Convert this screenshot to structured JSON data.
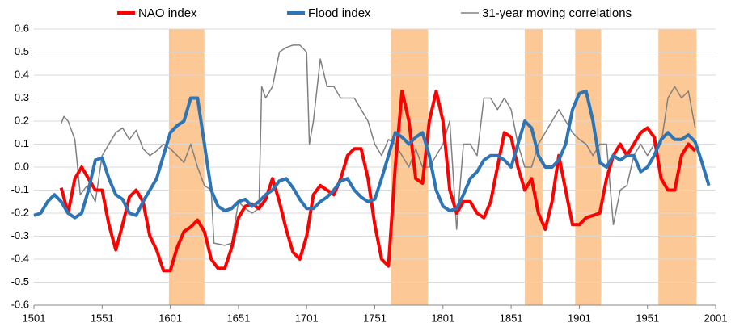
{
  "chart_data": {
    "type": "line",
    "xlim": [
      1501,
      2001
    ],
    "xticks": [
      1501,
      1551,
      1601,
      1651,
      1701,
      1751,
      1801,
      1851,
      1901,
      1951,
      2001
    ],
    "ylim": [
      -0.6,
      0.6
    ],
    "yticks": [
      -0.6,
      -0.5,
      -0.4,
      -0.3,
      -0.2,
      -0.1,
      {
        "value": 0,
        "label": "0.0"
      },
      0.1,
      0.2,
      0.3,
      0.4,
      0.5,
      0.6
    ],
    "grid": true,
    "legend": "top",
    "shaded_periods": [
      [
        1600,
        1626
      ],
      [
        1763,
        1790
      ],
      [
        1861,
        1874
      ],
      [
        1898,
        1917
      ],
      [
        1959,
        1987
      ]
    ],
    "shade_color": "#fcc996",
    "series": [
      {
        "name": "NAO index",
        "color": "#ff0000",
        "width": 4,
        "x": [
          1521,
          1526,
          1531,
          1536,
          1541,
          1546,
          1551,
          1556,
          1561,
          1566,
          1571,
          1576,
          1581,
          1586,
          1591,
          1596,
          1601,
          1606,
          1611,
          1616,
          1621,
          1626,
          1631,
          1636,
          1641,
          1646,
          1651,
          1656,
          1661,
          1666,
          1671,
          1676,
          1681,
          1686,
          1691,
          1696,
          1701,
          1706,
          1711,
          1716,
          1721,
          1726,
          1731,
          1736,
          1741,
          1746,
          1751,
          1756,
          1761,
          1766,
          1771,
          1776,
          1781,
          1786,
          1791,
          1796,
          1801,
          1806,
          1811,
          1816,
          1821,
          1826,
          1831,
          1836,
          1841,
          1846,
          1851,
          1856,
          1861,
          1866,
          1871,
          1876,
          1881,
          1886,
          1891,
          1896,
          1901,
          1906,
          1911,
          1916,
          1921,
          1926,
          1931,
          1936,
          1941,
          1946,
          1951,
          1956,
          1961,
          1966,
          1971,
          1976,
          1981,
          1986
        ],
        "values": [
          -0.09,
          -0.2,
          -0.05,
          0.0,
          -0.05,
          -0.1,
          -0.1,
          -0.25,
          -0.36,
          -0.25,
          -0.13,
          -0.1,
          -0.15,
          -0.3,
          -0.36,
          -0.45,
          -0.45,
          -0.35,
          -0.28,
          -0.26,
          -0.23,
          -0.28,
          -0.4,
          -0.44,
          -0.44,
          -0.35,
          -0.22,
          -0.17,
          -0.16,
          -0.18,
          -0.14,
          -0.05,
          -0.15,
          -0.27,
          -0.37,
          -0.4,
          -0.3,
          -0.12,
          -0.08,
          -0.1,
          -0.12,
          -0.05,
          0.05,
          0.08,
          0.08,
          -0.05,
          -0.25,
          -0.4,
          -0.43,
          0.0,
          0.33,
          0.2,
          -0.05,
          -0.07,
          0.2,
          0.33,
          0.2,
          -0.1,
          -0.2,
          -0.15,
          -0.15,
          -0.2,
          -0.22,
          -0.15,
          0.0,
          0.15,
          0.13,
          0.0,
          -0.1,
          -0.05,
          -0.2,
          -0.27,
          -0.15,
          0.05,
          -0.1,
          -0.25,
          -0.25,
          -0.22,
          -0.21,
          -0.2,
          -0.05,
          0.05,
          0.1,
          0.05,
          0.1,
          0.15,
          0.17,
          0.13,
          -0.05,
          -0.1,
          -0.1,
          0.05,
          0.1,
          0.07
        ]
      },
      {
        "name": "Flood index",
        "color": "#2e75b6",
        "width": 4,
        "x": [
          1501,
          1506,
          1511,
          1516,
          1521,
          1526,
          1531,
          1536,
          1541,
          1546,
          1551,
          1556,
          1561,
          1566,
          1571,
          1576,
          1581,
          1586,
          1591,
          1596,
          1601,
          1606,
          1611,
          1616,
          1621,
          1626,
          1631,
          1636,
          1641,
          1646,
          1651,
          1656,
          1661,
          1666,
          1671,
          1676,
          1681,
          1686,
          1691,
          1696,
          1701,
          1706,
          1711,
          1716,
          1721,
          1726,
          1731,
          1736,
          1741,
          1746,
          1751,
          1756,
          1761,
          1766,
          1771,
          1776,
          1781,
          1786,
          1791,
          1796,
          1801,
          1806,
          1811,
          1816,
          1821,
          1826,
          1831,
          1836,
          1841,
          1846,
          1851,
          1856,
          1861,
          1866,
          1871,
          1876,
          1881,
          1886,
          1891,
          1896,
          1901,
          1906,
          1911,
          1916,
          1921,
          1926,
          1931,
          1936,
          1941,
          1946,
          1951,
          1956,
          1961,
          1966,
          1971,
          1976,
          1981,
          1986,
          1991,
          1996
        ],
        "values": [
          -0.21,
          -0.2,
          -0.15,
          -0.12,
          -0.15,
          -0.2,
          -0.22,
          -0.2,
          -0.1,
          0.03,
          0.04,
          -0.05,
          -0.12,
          -0.14,
          -0.2,
          -0.21,
          -0.15,
          -0.1,
          -0.05,
          0.05,
          0.15,
          0.18,
          0.2,
          0.3,
          0.3,
          0.1,
          -0.1,
          -0.17,
          -0.19,
          -0.18,
          -0.15,
          -0.14,
          -0.17,
          -0.15,
          -0.12,
          -0.1,
          -0.06,
          -0.05,
          -0.09,
          -0.14,
          -0.18,
          -0.18,
          -0.15,
          -0.13,
          -0.1,
          -0.06,
          -0.05,
          -0.1,
          -0.13,
          -0.15,
          -0.14,
          -0.05,
          0.05,
          0.15,
          0.13,
          0.1,
          0.13,
          0.15,
          0.05,
          -0.1,
          -0.17,
          -0.19,
          -0.18,
          -0.12,
          -0.05,
          -0.02,
          0.03,
          0.05,
          0.05,
          0.03,
          0.0,
          0.1,
          0.2,
          0.17,
          0.05,
          0.0,
          0.0,
          0.03,
          0.1,
          0.25,
          0.32,
          0.33,
          0.2,
          0.02,
          0.0,
          0.05,
          0.03,
          0.05,
          0.05,
          -0.02,
          0.0,
          0.05,
          0.12,
          0.15,
          0.12,
          0.12,
          0.14,
          0.11,
          0.02,
          -0.08
        ]
      },
      {
        "name": "31-year moving correlations",
        "color": "#808080",
        "width": 1.5,
        "x": [
          1521,
          1523,
          1526,
          1531,
          1535,
          1540,
          1546,
          1551,
          1556,
          1561,
          1566,
          1571,
          1576,
          1581,
          1586,
          1591,
          1596,
          1601,
          1606,
          1611,
          1616,
          1621,
          1626,
          1631,
          1633,
          1641,
          1646,
          1651,
          1656,
          1661,
          1666,
          1668,
          1671,
          1676,
          1681,
          1686,
          1691,
          1696,
          1701,
          1703,
          1706,
          1711,
          1716,
          1721,
          1726,
          1731,
          1736,
          1741,
          1746,
          1751,
          1756,
          1761,
          1766,
          1771,
          1776,
          1781,
          1786,
          1791,
          1796,
          1801,
          1806,
          1811,
          1816,
          1821,
          1826,
          1831,
          1836,
          1841,
          1846,
          1851,
          1856,
          1861,
          1866,
          1871,
          1876,
          1881,
          1886,
          1891,
          1896,
          1901,
          1906,
          1911,
          1916,
          1921,
          1926,
          1931,
          1936,
          1941,
          1946,
          1951,
          1956,
          1961,
          1966,
          1971,
          1976,
          1981,
          1986
        ],
        "values": [
          0.19,
          0.22,
          0.2,
          0.12,
          -0.12,
          -0.08,
          -0.15,
          0.05,
          0.1,
          0.15,
          0.17,
          0.12,
          0.16,
          0.08,
          0.05,
          0.07,
          0.1,
          0.08,
          0.05,
          0.02,
          0.1,
          0.0,
          -0.08,
          -0.1,
          -0.33,
          -0.34,
          -0.33,
          -0.15,
          -0.18,
          -0.2,
          -0.18,
          0.35,
          0.3,
          0.35,
          0.5,
          0.52,
          0.53,
          0.53,
          0.5,
          0.1,
          0.2,
          0.47,
          0.35,
          0.35,
          0.3,
          0.3,
          0.3,
          0.25,
          0.2,
          0.1,
          0.05,
          0.12,
          0.1,
          0.05,
          0.0,
          0.08,
          0.0,
          0.0,
          0.05,
          0.1,
          0.2,
          -0.27,
          0.1,
          0.1,
          0.05,
          0.3,
          0.3,
          0.25,
          0.3,
          0.25,
          0.1,
          0.0,
          0.0,
          0.1,
          0.15,
          0.2,
          0.25,
          0.2,
          0.15,
          0.12,
          0.1,
          0.05,
          0.1,
          0.1,
          -0.25,
          -0.1,
          -0.08,
          0.05,
          0.1,
          0.05,
          0.1,
          0.1,
          0.3,
          0.35,
          0.3,
          0.33,
          0.17
        ]
      }
    ]
  }
}
